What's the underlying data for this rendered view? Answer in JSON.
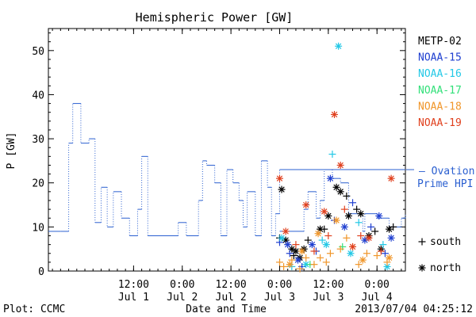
{
  "chart_data": {
    "type": "scatter",
    "title": "Hemispheric Power [GW]",
    "ylabel": "P [GW]",
    "xlabel": "Date and Time",
    "footer_left": "Plot: CCMC",
    "footer_right": "2013/07/04 04:25:12",
    "xlim": [
      "2013-06-30T15:00",
      "2013-07-04T07:00"
    ],
    "ylim": [
      0,
      55
    ],
    "y_ticks": [
      0,
      10,
      20,
      30,
      40,
      50
    ],
    "x_ticks": [
      {
        "t": "2013-07-01T12:00",
        "time": "12:00",
        "date": "Jul 1"
      },
      {
        "t": "2013-07-02T00:00",
        "time": "0:00",
        "date": "Jul 2"
      },
      {
        "t": "2013-07-02T12:00",
        "time": "12:00",
        "date": "Jul 2"
      },
      {
        "t": "2013-07-03T00:00",
        "time": "0:00",
        "date": "Jul 3"
      },
      {
        "t": "2013-07-03T12:00",
        "time": "12:00",
        "date": "Jul 3"
      },
      {
        "t": "2013-07-04T00:00",
        "time": "0:00",
        "date": "Jul 4"
      }
    ],
    "ovation_label": [
      "— Ovation",
      "Prime HPI"
    ],
    "ovation_level": 23,
    "legend": [
      {
        "name": "METP-02",
        "color": "#000000"
      },
      {
        "name": "NOAA-15",
        "color": "#1f3fd0"
      },
      {
        "name": "NOAA-16",
        "color": "#22c8e6"
      },
      {
        "name": "NOAA-17",
        "color": "#33e07a"
      },
      {
        "name": "NOAA-18",
        "color": "#f0962a"
      },
      {
        "name": "NOAA-19",
        "color": "#e0401e"
      }
    ],
    "marker_legend": [
      {
        "symbol": "+",
        "label": "south"
      },
      {
        "symbol": "*",
        "label": "north"
      }
    ],
    "ovation_series": {
      "name": "Ovation Prime HPI",
      "color": "#2a5fd0",
      "points": [
        [
          "2013-06-30T15:00",
          9
        ],
        [
          "2013-06-30T18:00",
          9
        ],
        [
          "2013-06-30T20:00",
          29
        ],
        [
          "2013-06-30T21:00",
          38
        ],
        [
          "2013-06-30T23:00",
          29
        ],
        [
          "2013-07-01T01:00",
          30
        ],
        [
          "2013-07-01T02:30",
          11
        ],
        [
          "2013-07-01T04:00",
          19
        ],
        [
          "2013-07-01T05:30",
          10
        ],
        [
          "2013-07-01T07:00",
          18
        ],
        [
          "2013-07-01T09:00",
          12
        ],
        [
          "2013-07-01T11:00",
          8
        ],
        [
          "2013-07-01T13:00",
          14
        ],
        [
          "2013-07-01T14:00",
          26
        ],
        [
          "2013-07-01T15:30",
          8
        ],
        [
          "2013-07-01T23:00",
          11
        ],
        [
          "2013-07-02T01:00",
          8
        ],
        [
          "2013-07-02T04:00",
          16
        ],
        [
          "2013-07-02T05:00",
          25
        ],
        [
          "2013-07-02T06:00",
          24
        ],
        [
          "2013-07-02T08:00",
          20
        ],
        [
          "2013-07-02T09:30",
          8
        ],
        [
          "2013-07-02T11:00",
          23
        ],
        [
          "2013-07-02T12:30",
          20
        ],
        [
          "2013-07-02T14:00",
          16
        ],
        [
          "2013-07-02T15:00",
          10
        ],
        [
          "2013-07-02T16:00",
          18
        ],
        [
          "2013-07-02T18:00",
          8
        ],
        [
          "2013-07-02T19:30",
          25
        ],
        [
          "2013-07-02T21:00",
          19
        ],
        [
          "2013-07-02T22:00",
          8
        ],
        [
          "2013-07-02T23:00",
          13
        ],
        [
          "2013-07-03T00:00",
          23
        ]
      ]
    },
    "prime_hpi_series": {
      "name": "Prime HPI",
      "color": "#2a5fd0",
      "points": [
        [
          "2013-07-03T00:00",
          9
        ],
        [
          "2013-07-03T06:00",
          14
        ],
        [
          "2013-07-03T07:00",
          18
        ],
        [
          "2013-07-03T09:00",
          12
        ],
        [
          "2013-07-03T10:00",
          16
        ],
        [
          "2013-07-03T11:00",
          23
        ],
        [
          "2013-07-03T13:00",
          21
        ],
        [
          "2013-07-03T15:00",
          20
        ],
        [
          "2013-07-03T17:00",
          13
        ],
        [
          "2013-07-03T19:00",
          13
        ],
        [
          "2013-07-03T20:30",
          9
        ],
        [
          "2013-07-03T21:00",
          13
        ],
        [
          "2013-07-04T00:00",
          12
        ],
        [
          "2013-07-04T03:00",
          10
        ],
        [
          "2013-07-04T06:00",
          12
        ],
        [
          "2013-07-04T07:00",
          13
        ]
      ]
    },
    "series": [
      {
        "satellite": "METP-02",
        "color": "#000000",
        "marker": "*",
        "points": [
          [
            "2013-07-03T00:30",
            18.5
          ],
          [
            "2013-07-03T01:30",
            7
          ],
          [
            "2013-07-03T03:00",
            5
          ],
          [
            "2013-07-03T04:00",
            4.5
          ],
          [
            "2013-07-03T05:00",
            3
          ],
          [
            "2013-07-03T06:00",
            5
          ],
          [
            "2013-07-03T10:00",
            9.5
          ],
          [
            "2013-07-03T12:00",
            12.5
          ],
          [
            "2013-07-03T14:00",
            19
          ],
          [
            "2013-07-03T15:00",
            18
          ],
          [
            "2013-07-03T17:00",
            12.5
          ],
          [
            "2013-07-03T20:00",
            13
          ],
          [
            "2013-07-03T22:00",
            8
          ],
          [
            "2013-07-04T01:00",
            5
          ],
          [
            "2013-07-04T03:00",
            9.5
          ]
        ]
      },
      {
        "satellite": "METP-02",
        "color": "#000000",
        "marker": "+",
        "points": [
          [
            "2013-07-03T00:00",
            7.5
          ],
          [
            "2013-07-03T03:30",
            3.5
          ],
          [
            "2013-07-03T07:00",
            7
          ],
          [
            "2013-07-03T11:00",
            9.5
          ],
          [
            "2013-07-03T16:30",
            17
          ],
          [
            "2013-07-03T19:00",
            14
          ],
          [
            "2013-07-03T23:30",
            9
          ],
          [
            "2013-07-04T04:00",
            10
          ]
        ]
      },
      {
        "satellite": "NOAA-15",
        "color": "#1f3fd0",
        "marker": "*",
        "points": [
          [
            "2013-07-03T02:00",
            6
          ],
          [
            "2013-07-03T04:30",
            2.5
          ],
          [
            "2013-07-03T08:00",
            6
          ],
          [
            "2013-07-03T12:30",
            21
          ],
          [
            "2013-07-03T16:00",
            10
          ],
          [
            "2013-07-03T21:00",
            7
          ],
          [
            "2013-07-04T00:30",
            12.5
          ],
          [
            "2013-07-04T03:30",
            7.5
          ]
        ]
      },
      {
        "satellite": "NOAA-15",
        "color": "#1f3fd0",
        "marker": "+",
        "points": [
          [
            "2013-07-03T00:00",
            6.5
          ],
          [
            "2013-07-03T02:30",
            4
          ],
          [
            "2013-07-03T05:30",
            1
          ],
          [
            "2013-07-03T09:00",
            4.5
          ],
          [
            "2013-07-03T13:30",
            11.5
          ],
          [
            "2013-07-03T18:00",
            15.5
          ],
          [
            "2013-07-03T22:30",
            10
          ],
          [
            "2013-07-04T02:00",
            4
          ]
        ]
      },
      {
        "satellite": "NOAA-16",
        "color": "#22c8e6",
        "marker": "*",
        "points": [
          [
            "2013-07-03T00:30",
            7.5
          ],
          [
            "2013-07-03T06:30",
            1.5
          ],
          [
            "2013-07-03T11:30",
            6
          ],
          [
            "2013-07-03T14:30",
            51
          ],
          [
            "2013-07-03T17:30",
            4
          ],
          [
            "2013-07-04T02:30",
            1
          ]
        ]
      },
      {
        "satellite": "NOAA-16",
        "color": "#22c8e6",
        "marker": "+",
        "points": [
          [
            "2013-07-03T03:00",
            1
          ],
          [
            "2013-07-03T10:30",
            7
          ],
          [
            "2013-07-03T13:00",
            26.5
          ],
          [
            "2013-07-03T19:30",
            11
          ],
          [
            "2013-07-04T01:30",
            6
          ]
        ]
      },
      {
        "satellite": "NOAA-17",
        "color": "#33e07a",
        "marker": "+",
        "points": [
          [
            "2013-07-03T07:30",
            1.5
          ],
          [
            "2013-07-03T15:30",
            5.5
          ]
        ]
      },
      {
        "satellite": "NOAA-18",
        "color": "#f0962a",
        "marker": "+",
        "points": [
          [
            "2013-07-03T00:00",
            2
          ],
          [
            "2013-07-03T01:00",
            1
          ],
          [
            "2013-07-03T03:00",
            2.5
          ],
          [
            "2013-07-03T05:00",
            0.5
          ],
          [
            "2013-07-03T06:30",
            3
          ],
          [
            "2013-07-03T08:30",
            1.5
          ],
          [
            "2013-07-03T10:00",
            3
          ],
          [
            "2013-07-03T11:30",
            2
          ],
          [
            "2013-07-03T12:30",
            4
          ],
          [
            "2013-07-03T15:00",
            5
          ],
          [
            "2013-07-03T16:30",
            7.5
          ],
          [
            "2013-07-03T18:00",
            5.5
          ],
          [
            "2013-07-03T19:30",
            1.5
          ],
          [
            "2013-07-03T21:30",
            4
          ],
          [
            "2013-07-04T00:00",
            3.5
          ],
          [
            "2013-07-04T02:30",
            2
          ]
        ]
      },
      {
        "satellite": "NOAA-18",
        "color": "#f0962a",
        "marker": "*",
        "points": [
          [
            "2013-07-03T02:30",
            1.5
          ],
          [
            "2013-07-03T05:30",
            4.5
          ],
          [
            "2013-07-03T09:30",
            8.5
          ],
          [
            "2013-07-03T14:00",
            11.5
          ],
          [
            "2013-07-03T20:30",
            2.5
          ],
          [
            "2013-07-04T03:00",
            3
          ]
        ]
      },
      {
        "satellite": "NOAA-19",
        "color": "#e0401e",
        "marker": "*",
        "points": [
          [
            "2013-07-03T00:00",
            21
          ],
          [
            "2013-07-03T01:30",
            9
          ],
          [
            "2013-07-03T06:30",
            15
          ],
          [
            "2013-07-03T11:00",
            13.5
          ],
          [
            "2013-07-03T13:30",
            35.5
          ],
          [
            "2013-07-03T15:00",
            24
          ],
          [
            "2013-07-03T18:00",
            5.5
          ],
          [
            "2013-07-03T22:00",
            7.5
          ],
          [
            "2013-07-04T03:30",
            21
          ]
        ]
      },
      {
        "satellite": "NOAA-19",
        "color": "#e0401e",
        "marker": "+",
        "points": [
          [
            "2013-07-03T04:00",
            6
          ],
          [
            "2013-07-03T08:30",
            4.5
          ],
          [
            "2013-07-03T12:00",
            8
          ],
          [
            "2013-07-03T16:00",
            14
          ],
          [
            "2013-07-03T20:00",
            8
          ],
          [
            "2013-07-04T01:00",
            4.5
          ]
        ]
      }
    ]
  }
}
